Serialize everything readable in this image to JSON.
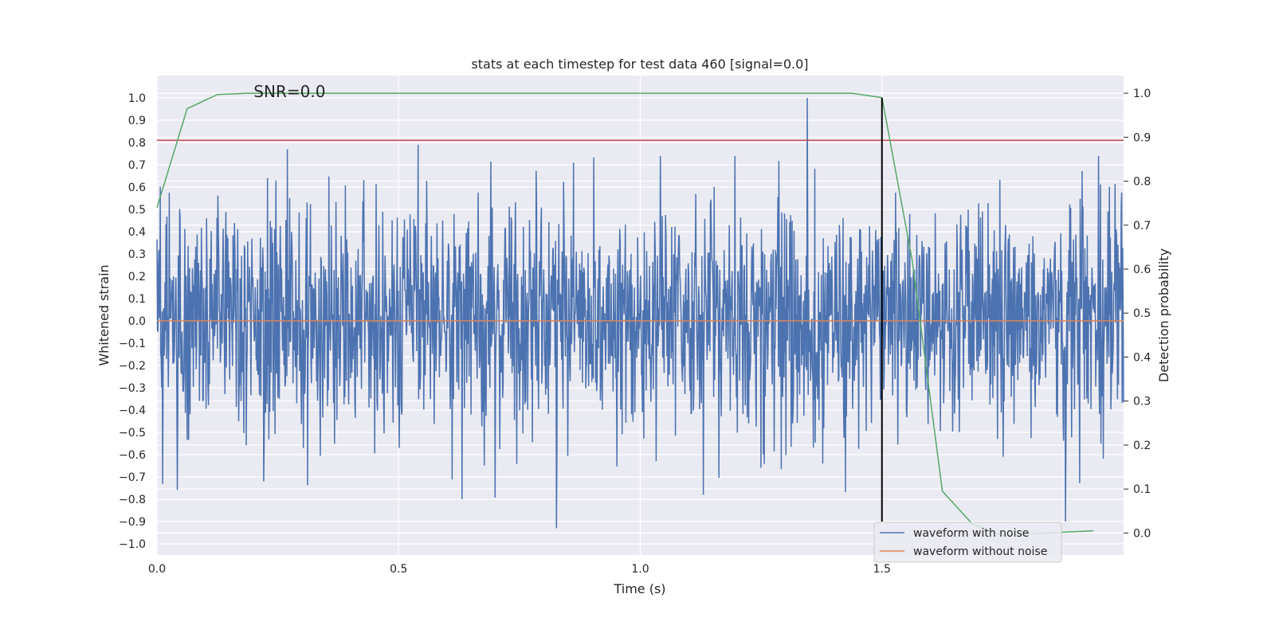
{
  "chart_data": {
    "type": "line",
    "title": "stats at each timestep for test data 460 [signal=0.0]",
    "xlabel": "Time (s)",
    "ylabel_left": "Whitened strain",
    "ylabel_right": "Detection probability",
    "xlim": [
      0.0,
      2.0
    ],
    "ylim_left": [
      -1.05,
      1.1
    ],
    "ylim_right": [
      -0.05,
      1.04
    ],
    "xticks": [
      0.0,
      0.5,
      1.0,
      1.5
    ],
    "xtick_labels": [
      "0.0",
      "0.5",
      "1.0",
      "1.5"
    ],
    "yticks_left": [
      1.0,
      0.9,
      0.8,
      0.7,
      0.6,
      0.5,
      0.4,
      0.3,
      0.2,
      0.1,
      0.0,
      -0.1,
      -0.2,
      -0.3,
      -0.4,
      -0.5,
      -0.6,
      -0.7,
      -0.8,
      -0.9,
      -1.0
    ],
    "ytick_labels_left": [
      "1.0",
      "0.9",
      "0.8",
      "0.7",
      "0.6",
      "0.5",
      "0.4",
      "0.3",
      "0.2",
      "0.1",
      "0.0",
      "−0.1",
      "−0.2",
      "−0.3",
      "−0.4",
      "−0.5",
      "−0.6",
      "−0.7",
      "−0.8",
      "−0.9",
      "−1.0"
    ],
    "yticks_right": [
      1.0,
      0.9,
      0.8,
      0.7,
      0.6,
      0.5,
      0.4,
      0.3,
      0.2,
      0.1,
      0.0
    ],
    "ytick_labels_right": [
      "1.0",
      "0.9",
      "0.8",
      "0.7",
      "0.6",
      "0.5",
      "0.4",
      "0.3",
      "0.2",
      "0.1",
      "0.0"
    ],
    "grid": true,
    "annotation": "SNR=0.0",
    "annotation_at": [
      0.2,
      1.0
    ],
    "vline_x": 1.5,
    "vline_range": [
      -0.9,
      1.0
    ],
    "hline_y_left": 0.81,
    "noise": {
      "n_points": 2048,
      "spikes": [
        [
          0.27,
          0.77
        ],
        [
          0.54,
          0.79
        ],
        [
          1.345,
          1.0
        ],
        [
          0.827,
          -0.93
        ],
        [
          1.88,
          -0.9
        ],
        [
          1.13,
          -0.78
        ]
      ]
    },
    "series": [
      {
        "name": "waveform with noise",
        "axis": "left",
        "color": "#4c72b0",
        "role": "noise"
      },
      {
        "name": "waveform without noise",
        "axis": "left",
        "color": "#dd8452",
        "x": [
          0.0,
          2.0
        ],
        "y": [
          0.0,
          0.0
        ]
      },
      {
        "axis": "right",
        "color": "#55a868",
        "x": [
          0.0,
          0.0625,
          0.125,
          0.1875,
          1.4375,
          1.5,
          1.5625,
          1.625,
          1.6875,
          1.75,
          1.9375
        ],
        "y": [
          0.74,
          0.965,
          0.997,
          1.0,
          1.0,
          0.99,
          0.62,
          0.095,
          0.02,
          -0.005,
          0.005
        ]
      },
      {
        "axis": "left",
        "color": "#c44e52",
        "x": [
          0.0,
          2.0
        ],
        "y": [
          0.81,
          0.81
        ]
      }
    ],
    "legend_placement": "lower-right"
  },
  "colors": {
    "plot_background": "#eaeaf2",
    "grid": "#ffffff",
    "text": "#262626",
    "vline": "#000000"
  }
}
